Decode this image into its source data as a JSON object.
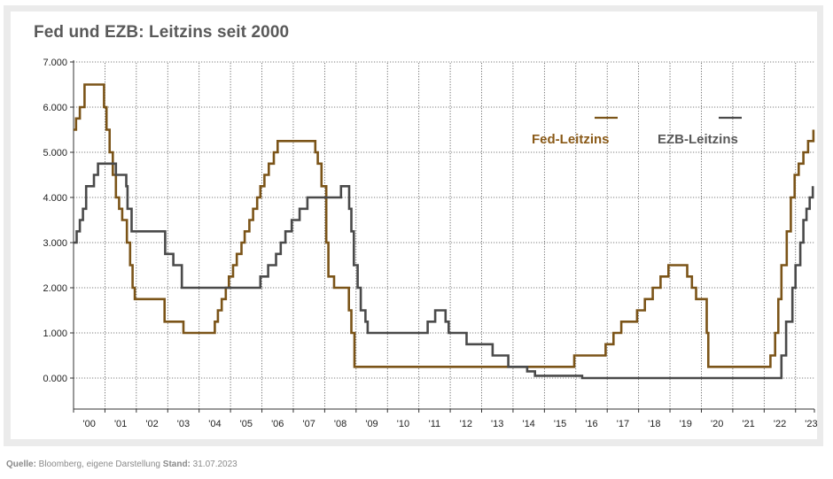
{
  "chart_data": {
    "type": "line",
    "title": "Fed und EZB: Leitzins seit 2000",
    "xlabel": "",
    "ylabel": "",
    "ylim": [
      -0.75,
      7.0
    ],
    "yticks": [
      0,
      1,
      2,
      3,
      4,
      5,
      6,
      7
    ],
    "ytick_labels": [
      "0.000",
      "1.000",
      "2.000",
      "3.000",
      "4.000",
      "5.000",
      "6.000",
      "7.000"
    ],
    "xlim": [
      2000.0,
      2023.6
    ],
    "xticks": [
      "'00",
      "'01",
      "'02",
      "'03",
      "'04",
      "'05",
      "'06",
      "'07",
      "'08",
      "'09",
      "'10",
      "'11",
      "'12",
      "'13",
      "'14",
      "'15",
      "'16",
      "'17",
      "'18",
      "'19",
      "'20",
      "'21",
      "'22",
      "'23"
    ],
    "grid": true,
    "legend": "top-right",
    "series": [
      {
        "name": "Fed-Leitzins",
        "color": "#7b5418",
        "points": [
          [
            2000.0,
            5.5
          ],
          [
            2000.08,
            5.75
          ],
          [
            2000.2,
            6.0
          ],
          [
            2000.35,
            6.5
          ],
          [
            2000.97,
            6.0
          ],
          [
            2001.05,
            5.5
          ],
          [
            2001.15,
            5.0
          ],
          [
            2001.25,
            4.5
          ],
          [
            2001.35,
            4.0
          ],
          [
            2001.45,
            3.75
          ],
          [
            2001.55,
            3.5
          ],
          [
            2001.7,
            3.0
          ],
          [
            2001.8,
            2.5
          ],
          [
            2001.88,
            2.0
          ],
          [
            2001.95,
            1.75
          ],
          [
            2002.9,
            1.25
          ],
          [
            2003.5,
            1.0
          ],
          [
            2004.5,
            1.25
          ],
          [
            2004.6,
            1.5
          ],
          [
            2004.72,
            1.75
          ],
          [
            2004.85,
            2.0
          ],
          [
            2004.95,
            2.25
          ],
          [
            2005.08,
            2.5
          ],
          [
            2005.2,
            2.75
          ],
          [
            2005.35,
            3.0
          ],
          [
            2005.45,
            3.25
          ],
          [
            2005.6,
            3.5
          ],
          [
            2005.72,
            3.75
          ],
          [
            2005.85,
            4.0
          ],
          [
            2005.95,
            4.25
          ],
          [
            2006.08,
            4.5
          ],
          [
            2006.22,
            4.75
          ],
          [
            2006.38,
            5.0
          ],
          [
            2006.5,
            5.25
          ],
          [
            2007.7,
            5.0
          ],
          [
            2007.78,
            4.75
          ],
          [
            2007.9,
            4.25
          ],
          [
            2008.05,
            3.0
          ],
          [
            2008.12,
            2.25
          ],
          [
            2008.3,
            2.0
          ],
          [
            2008.77,
            1.5
          ],
          [
            2008.85,
            1.0
          ],
          [
            2008.95,
            0.25
          ],
          [
            2015.95,
            0.5
          ],
          [
            2016.95,
            0.75
          ],
          [
            2017.2,
            1.0
          ],
          [
            2017.45,
            1.25
          ],
          [
            2017.95,
            1.5
          ],
          [
            2018.2,
            1.75
          ],
          [
            2018.45,
            2.0
          ],
          [
            2018.7,
            2.25
          ],
          [
            2018.95,
            2.5
          ],
          [
            2019.55,
            2.25
          ],
          [
            2019.7,
            2.0
          ],
          [
            2019.83,
            1.75
          ],
          [
            2020.17,
            1.0
          ],
          [
            2020.22,
            0.25
          ],
          [
            2022.2,
            0.5
          ],
          [
            2022.35,
            1.0
          ],
          [
            2022.45,
            1.75
          ],
          [
            2022.55,
            2.5
          ],
          [
            2022.72,
            3.25
          ],
          [
            2022.85,
            4.0
          ],
          [
            2022.97,
            4.5
          ],
          [
            2023.1,
            4.75
          ],
          [
            2023.25,
            5.0
          ],
          [
            2023.4,
            5.25
          ],
          [
            2023.57,
            5.5
          ]
        ]
      },
      {
        "name": "EZB-Leitzins",
        "color": "#4a4a4a",
        "points": [
          [
            2000.0,
            3.0
          ],
          [
            2000.1,
            3.25
          ],
          [
            2000.2,
            3.5
          ],
          [
            2000.3,
            3.75
          ],
          [
            2000.4,
            4.25
          ],
          [
            2000.65,
            4.5
          ],
          [
            2000.78,
            4.75
          ],
          [
            2001.35,
            4.5
          ],
          [
            2001.68,
            4.25
          ],
          [
            2001.72,
            3.75
          ],
          [
            2001.85,
            3.25
          ],
          [
            2002.92,
            2.75
          ],
          [
            2003.18,
            2.5
          ],
          [
            2003.45,
            2.0
          ],
          [
            2005.95,
            2.25
          ],
          [
            2006.2,
            2.5
          ],
          [
            2006.45,
            2.75
          ],
          [
            2006.6,
            3.0
          ],
          [
            2006.75,
            3.25
          ],
          [
            2006.95,
            3.5
          ],
          [
            2007.2,
            3.75
          ],
          [
            2007.45,
            4.0
          ],
          [
            2008.52,
            4.25
          ],
          [
            2008.78,
            3.75
          ],
          [
            2008.85,
            3.25
          ],
          [
            2008.93,
            2.5
          ],
          [
            2009.05,
            2.0
          ],
          [
            2009.15,
            1.5
          ],
          [
            2009.3,
            1.25
          ],
          [
            2009.37,
            1.0
          ],
          [
            2011.28,
            1.25
          ],
          [
            2011.52,
            1.5
          ],
          [
            2011.85,
            1.25
          ],
          [
            2011.95,
            1.0
          ],
          [
            2012.52,
            0.75
          ],
          [
            2013.35,
            0.5
          ],
          [
            2013.85,
            0.25
          ],
          [
            2014.45,
            0.15
          ],
          [
            2014.7,
            0.05
          ],
          [
            2016.2,
            0.0
          ],
          [
            2022.55,
            0.5
          ],
          [
            2022.7,
            1.25
          ],
          [
            2022.9,
            2.0
          ],
          [
            2023.0,
            2.5
          ],
          [
            2023.15,
            3.0
          ],
          [
            2023.25,
            3.5
          ],
          [
            2023.35,
            3.75
          ],
          [
            2023.45,
            4.0
          ],
          [
            2023.55,
            4.25
          ]
        ]
      }
    ]
  },
  "footer": {
    "source_label": "Quelle:",
    "source_text": " Bloomberg, eigene Darstellung ",
    "date_label": "Stand:",
    "date_text": " 31.07.2023"
  }
}
